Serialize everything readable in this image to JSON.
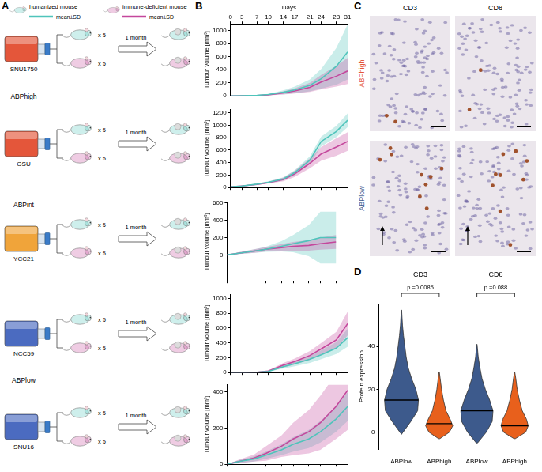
{
  "panels": [
    "A",
    "B",
    "C",
    "D"
  ],
  "schematic": {
    "legend": [
      {
        "label": "humanized mouse",
        "band": "mean±SD",
        "color": "#4fc4bb"
      },
      {
        "label": "immune-deficient mouse",
        "band": "mean±SD",
        "color": "#c4479c"
      }
    ],
    "replicates": "x 5",
    "duration": "1 month",
    "cell_lines": [
      {
        "name": "SNU1750",
        "group": "ABPhigh",
        "color": "#e4563a"
      },
      {
        "name": "GSU",
        "group": "ABPhigh",
        "color": "#e4563a"
      },
      {
        "name": "YCC21",
        "group": "ABPint",
        "color": "#f0a43a"
      },
      {
        "name": "NCC59",
        "group": "ABPlow",
        "color": "#4b6bc0"
      },
      {
        "name": "SNU16",
        "group": "ABPlow",
        "color": "#4b6bc0"
      }
    ]
  },
  "chart_data": [
    {
      "type": "line",
      "x": [
        0,
        3,
        7,
        10,
        14,
        17,
        21,
        24,
        28,
        31
      ],
      "xlim": [
        0,
        31
      ],
      "xticks": [
        0,
        3,
        7,
        10,
        14,
        17,
        21,
        24,
        28,
        31
      ],
      "x_label": "Days",
      "y_label": "Tumour volume [mm³]",
      "ylim": [
        0,
        1100
      ],
      "yticks": [
        0,
        200,
        400,
        600,
        800,
        1000
      ],
      "grid": false,
      "series": [
        {
          "name": "humanized mouse",
          "color": "#4fc4bb",
          "values": [
            0,
            2,
            8,
            20,
            55,
            90,
            160,
            260,
            450,
            670
          ],
          "sd": [
            0,
            2,
            5,
            10,
            30,
            50,
            90,
            150,
            280,
            420
          ]
        },
        {
          "name": "immune-deficient mouse",
          "color": "#c4479c",
          "values": [
            0,
            2,
            6,
            15,
            45,
            75,
            130,
            210,
            300,
            380
          ],
          "sd": [
            0,
            2,
            4,
            8,
            25,
            40,
            70,
            110,
            160,
            200
          ]
        }
      ]
    },
    {
      "type": "line",
      "x": [
        0,
        3,
        7,
        10,
        14,
        17,
        21,
        24,
        28,
        31
      ],
      "xlim": [
        0,
        31
      ],
      "xticks": [
        0,
        3,
        7,
        10,
        14,
        17,
        21,
        24,
        28,
        31
      ],
      "tick_labels": "y",
      "y_label": "Tumour volume [mm³]",
      "ylim": [
        0,
        1250
      ],
      "yticks": [
        0,
        200,
        400,
        600,
        800,
        1000,
        1200
      ],
      "grid": false,
      "series": [
        {
          "name": "humanized mouse",
          "color": "#4fc4bb",
          "values": [
            10,
            25,
            55,
            85,
            140,
            240,
            440,
            740,
            900,
            1080
          ],
          "sd": [
            3,
            5,
            10,
            15,
            25,
            40,
            60,
            80,
            90,
            110
          ]
        },
        {
          "name": "immune-deficient mouse",
          "color": "#c4479c",
          "values": [
            10,
            25,
            50,
            80,
            130,
            220,
            390,
            540,
            650,
            740
          ],
          "sd": [
            3,
            5,
            10,
            15,
            30,
            50,
            80,
            110,
            140,
            150
          ]
        }
      ]
    },
    {
      "type": "line",
      "x": [
        0,
        3,
        7,
        10,
        14,
        17,
        21,
        24,
        28,
        31
      ],
      "xlim": [
        0,
        31
      ],
      "xticks": [
        0,
        3,
        7,
        10,
        14,
        17,
        21,
        24,
        28,
        31
      ],
      "tick_labels": "y",
      "y_label": "Tumour volume [mm³]",
      "ylim": [
        -300,
        600
      ],
      "yticks": [
        0,
        200,
        400,
        600
      ],
      "grid": false,
      "series": [
        {
          "name": "humanized mouse",
          "color": "#4fc4bb",
          "values": [
            0,
            20,
            45,
            65,
            100,
            130,
            165,
            200,
            200,
            null
          ],
          "sd": [
            0,
            10,
            20,
            30,
            60,
            100,
            180,
            300,
            300,
            null
          ]
        },
        {
          "name": "immune-deficient mouse",
          "color": "#c4479c",
          "values": [
            0,
            20,
            45,
            65,
            85,
            100,
            110,
            130,
            150,
            null
          ],
          "sd": [
            0,
            10,
            20,
            25,
            40,
            50,
            60,
            70,
            80,
            null
          ]
        }
      ]
    },
    {
      "type": "line",
      "x": [
        0,
        3,
        7,
        10,
        14,
        17,
        21,
        24,
        28,
        31
      ],
      "xlim": [
        0,
        31
      ],
      "xticks": [
        0,
        3,
        7,
        10,
        14,
        17,
        21,
        24,
        28,
        31
      ],
      "tick_labels": "y",
      "y_label": "Tumour volume [mm³]",
      "ylim": [
        0,
        1050
      ],
      "yticks": [
        0,
        200,
        400,
        600,
        800,
        1000
      ],
      "grid": false,
      "series": [
        {
          "name": "humanized mouse",
          "color": "#4fc4bb",
          "values": [
            0,
            0,
            5,
            15,
            80,
            120,
            180,
            240,
            330,
            470
          ],
          "sd": [
            0,
            0,
            3,
            6,
            25,
            35,
            50,
            60,
            80,
            120
          ]
        },
        {
          "name": "immune-deficient mouse",
          "color": "#c4479c",
          "values": [
            0,
            0,
            5,
            20,
            100,
            150,
            230,
            320,
            440,
            660
          ],
          "sd": [
            0,
            0,
            3,
            8,
            30,
            40,
            60,
            80,
            110,
            160
          ]
        }
      ]
    },
    {
      "type": "line",
      "x": [
        0,
        3,
        7,
        10,
        14,
        17,
        21,
        24,
        28,
        31
      ],
      "xlim": [
        0,
        31
      ],
      "xticks": [
        0,
        3,
        7,
        10,
        14,
        17,
        21,
        24,
        28,
        31
      ],
      "tick_labels": "y",
      "y_label": "Tumour volume [mm³]",
      "ylim": [
        0,
        440
      ],
      "yticks": [
        0,
        200,
        400
      ],
      "grid": false,
      "series": [
        {
          "name": "humanized mouse",
          "color": "#4fc4bb",
          "values": [
            0,
            15,
            30,
            50,
            80,
            110,
            140,
            180,
            250,
            320
          ],
          "sd": [
            0,
            8,
            15,
            20,
            30,
            40,
            50,
            60,
            70,
            80
          ]
        },
        {
          "name": "immune-deficient mouse",
          "color": "#c4479c",
          "values": [
            0,
            15,
            35,
            60,
            100,
            140,
            180,
            230,
            320,
            410
          ],
          "sd": [
            0,
            10,
            20,
            40,
            60,
            90,
            120,
            150,
            180,
            220
          ]
        }
      ]
    },
    {
      "type": "violin",
      "y_label": "Protein expression",
      "ylim": [
        -8,
        60
      ],
      "yticks": [
        0,
        20,
        40
      ],
      "grid": false,
      "groups": [
        {
          "title": "CD3",
          "p": "p =0.0085"
        },
        {
          "title": "CD8",
          "p": "p =0.088"
        }
      ],
      "violins": [
        {
          "group": "CD3",
          "category": "ABPlow",
          "color": "#3d5a8c",
          "median": 15,
          "y": [
            -1,
            5,
            10,
            15,
            20,
            25,
            30,
            35,
            40,
            45,
            50,
            57
          ],
          "density": [
            0,
            0.55,
            0.95,
            1.0,
            0.85,
            0.6,
            0.4,
            0.28,
            0.2,
            0.12,
            0.06,
            0.01
          ]
        },
        {
          "group": "CD3",
          "category": "ABPhigh",
          "color": "#e8601c",
          "median": 4,
          "y": [
            -3,
            0,
            3,
            6,
            10,
            15,
            20,
            25,
            28
          ],
          "density": [
            0.04,
            0.6,
            0.8,
            0.65,
            0.4,
            0.25,
            0.14,
            0.06,
            0.01
          ]
        },
        {
          "group": "CD8",
          "category": "ABPlow",
          "color": "#3d5a8c",
          "median": 10,
          "y": [
            -5,
            0,
            5,
            10,
            15,
            20,
            25,
            30,
            35,
            41
          ],
          "density": [
            0.04,
            0.55,
            0.9,
            0.95,
            0.75,
            0.5,
            0.3,
            0.18,
            0.08,
            0.01
          ]
        },
        {
          "group": "CD8",
          "category": "ABPhigh",
          "color": "#e8601c",
          "median": 3,
          "y": [
            -3,
            0,
            3,
            6,
            10,
            15,
            20,
            25,
            28
          ],
          "density": [
            0.04,
            0.65,
            0.8,
            0.7,
            0.45,
            0.28,
            0.15,
            0.07,
            0.01
          ]
        }
      ]
    }
  ],
  "ihc": {
    "columns": [
      "CD3",
      "CD8"
    ],
    "rows": [
      {
        "label": "ABPhigh",
        "color": "#e4563a"
      },
      {
        "label": "ABPlow",
        "color": "#3d5a8c"
      }
    ]
  }
}
